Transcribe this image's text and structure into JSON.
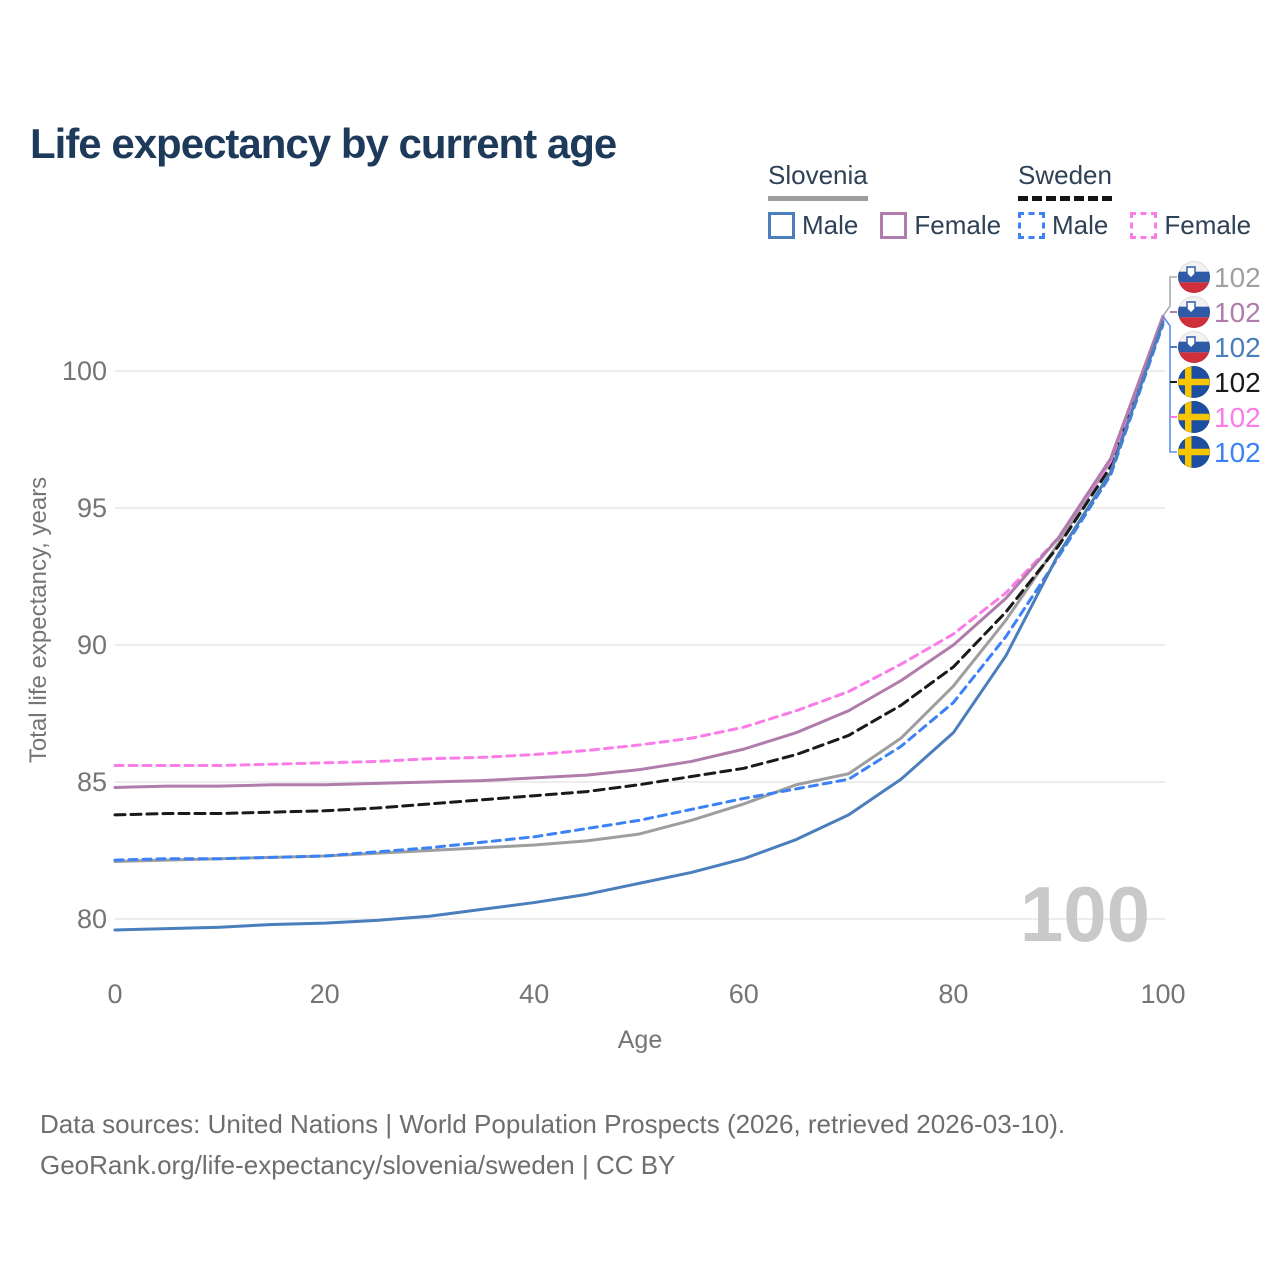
{
  "title": "Life expectancy by current age",
  "colors": {
    "title_text": "#1d3a5a",
    "legend_text": "#2f4156",
    "axis_text": "#757575",
    "gridline": "#e7e7e7",
    "watermark": "#c9c9c9",
    "footer_text": "#6e6e6e",
    "slovenia_total": "#9e9e9e",
    "slovenia_male": "#4a7ebc",
    "slovenia_female": "#b07cab",
    "sweden_total": "#1a1a1a",
    "sweden_male": "#3b82f6",
    "sweden_female": "#fb7ce8"
  },
  "legend": {
    "groups": [
      {
        "label": "Slovenia",
        "underline_style": "solid",
        "underline_color": "#9e9e9e",
        "items": [
          {
            "label": "Male",
            "swatch_color": "#4a7ebc",
            "swatch_style": "solid"
          },
          {
            "label": "Female",
            "swatch_color": "#b07cab",
            "swatch_style": "solid"
          }
        ]
      },
      {
        "label": "Sweden",
        "underline_style": "dashed",
        "underline_color": "#141414",
        "items": [
          {
            "label": "Male",
            "swatch_color": "#3b82f6",
            "swatch_style": "dashed"
          },
          {
            "label": "Female",
            "swatch_color": "#fb7ce8",
            "swatch_style": "dashed"
          }
        ]
      }
    ]
  },
  "watermark": "100",
  "end_labels": [
    {
      "flag": "slovenia",
      "value": "102",
      "color": "#a0a0a0"
    },
    {
      "flag": "slovenia",
      "value": "102",
      "color": "#b07cab"
    },
    {
      "flag": "slovenia",
      "value": "102",
      "color": "#4a7ebc"
    },
    {
      "flag": "sweden",
      "value": "102",
      "color": "#1a1a1a"
    },
    {
      "flag": "sweden",
      "value": "102",
      "color": "#fb7ce8"
    },
    {
      "flag": "sweden",
      "value": "102",
      "color": "#3b82f6"
    }
  ],
  "chart_data": {
    "type": "line",
    "title": "Life expectancy by current age",
    "xlabel": "Age",
    "ylabel": "Total life expectancy, years",
    "xlim": [
      0,
      100
    ],
    "ylim": [
      78.5,
      103.5
    ],
    "x_ticks": [
      0,
      20,
      40,
      60,
      80,
      100
    ],
    "y_ticks": [
      80,
      85,
      90,
      95,
      100
    ],
    "grid": "horizontal",
    "legend_position": "top-right",
    "x": [
      0,
      5,
      10,
      15,
      20,
      25,
      30,
      35,
      40,
      45,
      50,
      55,
      60,
      65,
      70,
      75,
      80,
      85,
      90,
      95,
      100
    ],
    "series": [
      {
        "name": "Slovenia",
        "country": "Slovenia",
        "sex": "Total",
        "color": "#9e9e9e",
        "dash": false,
        "values": [
          82.1,
          82.15,
          82.2,
          82.25,
          82.3,
          82.4,
          82.5,
          82.6,
          82.7,
          82.85,
          83.1,
          83.6,
          84.2,
          84.9,
          85.3,
          86.6,
          88.5,
          90.9,
          93.7,
          96.7,
          101.9
        ]
      },
      {
        "name": "Sweden Male",
        "country": "Sweden",
        "sex": "Male",
        "color": "#3b82f6",
        "dash": true,
        "values": [
          82.15,
          82.2,
          82.2,
          82.25,
          82.3,
          82.45,
          82.6,
          82.8,
          83.0,
          83.3,
          83.6,
          84.0,
          84.4,
          84.75,
          85.1,
          86.3,
          87.9,
          90.3,
          93.2,
          96.2,
          101.7
        ]
      },
      {
        "name": "Sweden",
        "country": "Sweden",
        "sex": "Total",
        "color": "#1a1a1a",
        "dash": true,
        "values": [
          83.8,
          83.85,
          83.85,
          83.9,
          83.95,
          84.05,
          84.2,
          84.35,
          84.5,
          84.65,
          84.9,
          85.2,
          85.5,
          86.0,
          86.7,
          87.8,
          89.2,
          91.2,
          93.6,
          96.5,
          101.8
        ]
      },
      {
        "name": "Sweden Female",
        "country": "Sweden",
        "sex": "Female",
        "color": "#fb7ce8",
        "dash": true,
        "values": [
          85.6,
          85.6,
          85.6,
          85.65,
          85.7,
          85.75,
          85.85,
          85.9,
          86.0,
          86.15,
          86.35,
          86.6,
          87.0,
          87.6,
          88.3,
          89.3,
          90.4,
          91.9,
          93.9,
          96.7,
          101.9
        ]
      },
      {
        "name": "Slovenia Female",
        "country": "Slovenia",
        "sex": "Female",
        "color": "#b07cab",
        "dash": false,
        "values": [
          84.8,
          84.85,
          84.85,
          84.9,
          84.9,
          84.95,
          85.0,
          85.05,
          85.15,
          85.25,
          85.45,
          85.75,
          86.2,
          86.8,
          87.6,
          88.7,
          90.0,
          91.7,
          93.9,
          96.8,
          102.0
        ]
      },
      {
        "name": "Slovenia Male",
        "country": "Slovenia",
        "sex": "Male",
        "color": "#4a7ebc",
        "dash": false,
        "values": [
          79.6,
          79.65,
          79.7,
          79.8,
          79.85,
          79.95,
          80.1,
          80.35,
          80.6,
          80.9,
          81.3,
          81.7,
          82.2,
          82.9,
          83.8,
          85.1,
          86.8,
          89.6,
          93.3,
          96.3,
          101.8
        ]
      }
    ]
  },
  "footer": {
    "line1": "Data sources: United Nations | World Population Prospects (2026, retrieved 2026-03-10).",
    "line2": "GeoRank.org/life-expectancy/slovenia/sweden | CC BY"
  }
}
